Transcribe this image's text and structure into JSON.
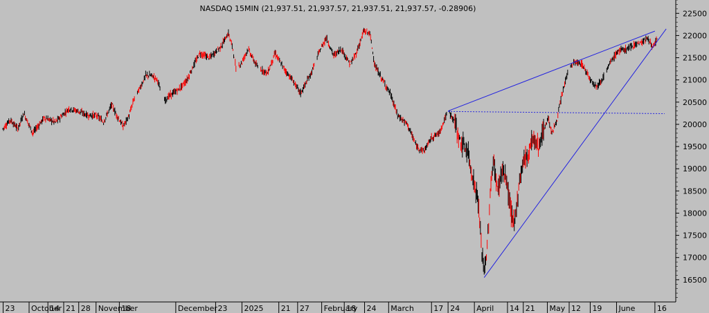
{
  "chart_data": {
    "type": "candlestick",
    "title": "NASDAQ 15MIN (21,937.51, 21,937.57, 21,937.51, 21,937.57, -0.28906)",
    "background": "#c0c0c0",
    "colors": {
      "up": "#000000",
      "down": "#ff0000",
      "trendline": "#2020e0",
      "axis": "#000000"
    },
    "ylim": [
      16000,
      22800
    ],
    "y_ticks": [
      16500,
      17000,
      17500,
      18000,
      18500,
      19000,
      19500,
      20000,
      20500,
      21000,
      21500,
      22000,
      22500
    ],
    "x_labels": [
      "23",
      "October",
      "14",
      "21",
      "28",
      "November",
      "18",
      "December",
      "23",
      "2025",
      "21",
      "27",
      "February",
      "18",
      "24",
      "March",
      "17",
      "24",
      "April",
      "14",
      "21",
      "May",
      "12",
      "19",
      "June",
      "16"
    ],
    "x_label_index": [
      0.5,
      35,
      60,
      81,
      101,
      124,
      155,
      230,
      283,
      318,
      367,
      392,
      424,
      454,
      481,
      513,
      570,
      592,
      627,
      671,
      692,
      724,
      753,
      781,
      816,
      867
    ],
    "series_points": [
      [
        0,
        19900
      ],
      [
        10,
        20100
      ],
      [
        20,
        19900
      ],
      [
        28,
        20250
      ],
      [
        40,
        19800
      ],
      [
        55,
        20150
      ],
      [
        70,
        20050
      ],
      [
        88,
        20350
      ],
      [
        100,
        20300
      ],
      [
        113,
        20200
      ],
      [
        125,
        20200
      ],
      [
        134,
        20050
      ],
      [
        145,
        20450
      ],
      [
        150,
        20250
      ],
      [
        160,
        19950
      ],
      [
        168,
        20200
      ],
      [
        175,
        20600
      ],
      [
        182,
        20800
      ],
      [
        190,
        21100
      ],
      [
        198,
        21100
      ],
      [
        206,
        21000
      ],
      [
        213,
        20500
      ],
      [
        222,
        20650
      ],
      [
        235,
        20800
      ],
      [
        245,
        21000
      ],
      [
        253,
        21300
      ],
      [
        262,
        21600
      ],
      [
        275,
        21500
      ],
      [
        290,
        21750
      ],
      [
        300,
        22050
      ],
      [
        306,
        21700
      ],
      [
        310,
        21250
      ],
      [
        318,
        21400
      ],
      [
        326,
        21700
      ],
      [
        338,
        21300
      ],
      [
        352,
        21150
      ],
      [
        362,
        21600
      ],
      [
        374,
        21250
      ],
      [
        385,
        21000
      ],
      [
        396,
        20700
      ],
      [
        410,
        21150
      ],
      [
        420,
        21600
      ],
      [
        430,
        21950
      ],
      [
        440,
        21550
      ],
      [
        450,
        21700
      ],
      [
        462,
        21350
      ],
      [
        470,
        21600
      ],
      [
        480,
        22100
      ],
      [
        488,
        22050
      ],
      [
        495,
        21300
      ],
      [
        505,
        21000
      ],
      [
        515,
        20700
      ],
      [
        525,
        20200
      ],
      [
        538,
        20000
      ],
      [
        550,
        19500
      ],
      [
        560,
        19400
      ],
      [
        570,
        19700
      ],
      [
        580,
        19800
      ],
      [
        592,
        20300
      ],
      [
        600,
        20100
      ],
      [
        608,
        19600
      ],
      [
        618,
        19400
      ],
      [
        626,
        18700
      ],
      [
        632,
        18300
      ],
      [
        636,
        17300
      ],
      [
        640,
        16700
      ],
      [
        644,
        17200
      ],
      [
        648,
        18400
      ],
      [
        652,
        19200
      ],
      [
        658,
        18500
      ],
      [
        664,
        19000
      ],
      [
        670,
        18700
      ],
      [
        676,
        18000
      ],
      [
        680,
        17700
      ],
      [
        686,
        18600
      ],
      [
        692,
        19200
      ],
      [
        698,
        19300
      ],
      [
        704,
        19700
      ],
      [
        712,
        19500
      ],
      [
        718,
        19800
      ],
      [
        725,
        20150
      ],
      [
        730,
        19800
      ],
      [
        736,
        20050
      ],
      [
        744,
        20700
      ],
      [
        752,
        21250
      ],
      [
        760,
        21400
      ],
      [
        770,
        21350
      ],
      [
        782,
        21000
      ],
      [
        790,
        20850
      ],
      [
        800,
        21100
      ],
      [
        808,
        21400
      ],
      [
        818,
        21650
      ],
      [
        830,
        21700
      ],
      [
        840,
        21800
      ],
      [
        850,
        21850
      ],
      [
        858,
        21950
      ],
      [
        864,
        21700
      ],
      [
        870,
        21937.57
      ]
    ],
    "trendlines": [
      {
        "from": [
          592,
          20300
        ],
        "to": [
          867,
          22100
        ]
      },
      {
        "from": [
          592,
          20290
        ],
        "to": [
          880,
          20240
        ],
        "style": "dotted"
      },
      {
        "from": [
          640,
          16550
        ],
        "to": [
          882,
          22150
        ]
      }
    ],
    "grid": false,
    "legend": "none"
  }
}
